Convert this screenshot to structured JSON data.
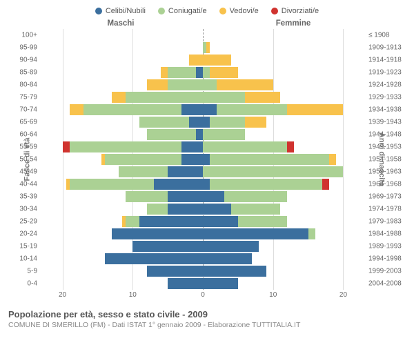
{
  "legend": {
    "items": [
      {
        "label": "Celibi/Nubili",
        "color": "#3b6f9e"
      },
      {
        "label": "Coniugati/e",
        "color": "#abd194"
      },
      {
        "label": "Vedovi/e",
        "color": "#f8c24c"
      },
      {
        "label": "Divorziati/e",
        "color": "#d0332f"
      }
    ]
  },
  "gender": {
    "male": "Maschi",
    "female": "Femmine"
  },
  "axes": {
    "left_title": "Fasce di età",
    "right_title": "Anni di nascita",
    "x_max": 23,
    "x_ticks": [
      20,
      10,
      0,
      10,
      20
    ]
  },
  "colors": {
    "single": "#3b6f9e",
    "married": "#abd194",
    "widowed": "#f8c24c",
    "divorced": "#d0332f",
    "grid": "#dddddd",
    "center": "#999999"
  },
  "rows": [
    {
      "age": "100+",
      "birth": "≤ 1908",
      "m": {
        "s": 0,
        "c": 0,
        "w": 0,
        "d": 0
      },
      "f": {
        "s": 0,
        "c": 0,
        "w": 0,
        "d": 0
      }
    },
    {
      "age": "95-99",
      "birth": "1909-1913",
      "m": {
        "s": 0,
        "c": 0,
        "w": 0,
        "d": 0
      },
      "f": {
        "s": 0,
        "c": 0.5,
        "w": 0.5,
        "d": 0
      }
    },
    {
      "age": "90-94",
      "birth": "1914-1918",
      "m": {
        "s": 0,
        "c": 0,
        "w": 2,
        "d": 0
      },
      "f": {
        "s": 0,
        "c": 0,
        "w": 4,
        "d": 0
      }
    },
    {
      "age": "85-89",
      "birth": "1919-1923",
      "m": {
        "s": 1,
        "c": 4,
        "w": 1,
        "d": 0
      },
      "f": {
        "s": 0,
        "c": 1,
        "w": 4,
        "d": 0
      }
    },
    {
      "age": "80-84",
      "birth": "1924-1928",
      "m": {
        "s": 0,
        "c": 5,
        "w": 3,
        "d": 0
      },
      "f": {
        "s": 0,
        "c": 2,
        "w": 8,
        "d": 0
      }
    },
    {
      "age": "75-79",
      "birth": "1929-1933",
      "m": {
        "s": 0,
        "c": 11,
        "w": 2,
        "d": 0
      },
      "f": {
        "s": 0,
        "c": 6,
        "w": 5,
        "d": 0
      }
    },
    {
      "age": "70-74",
      "birth": "1934-1938",
      "m": {
        "s": 3,
        "c": 14,
        "w": 2,
        "d": 0
      },
      "f": {
        "s": 2,
        "c": 10,
        "w": 8,
        "d": 0
      }
    },
    {
      "age": "65-69",
      "birth": "1939-1943",
      "m": {
        "s": 2,
        "c": 7,
        "w": 0,
        "d": 0
      },
      "f": {
        "s": 1,
        "c": 5,
        "w": 3,
        "d": 0
      }
    },
    {
      "age": "60-64",
      "birth": "1944-1948",
      "m": {
        "s": 1,
        "c": 7,
        "w": 0,
        "d": 0
      },
      "f": {
        "s": 0,
        "c": 6,
        "w": 0,
        "d": 0
      }
    },
    {
      "age": "55-59",
      "birth": "1949-1953",
      "m": {
        "s": 3,
        "c": 16,
        "w": 0,
        "d": 1
      },
      "f": {
        "s": 0,
        "c": 12,
        "w": 0,
        "d": 1
      }
    },
    {
      "age": "50-54",
      "birth": "1954-1958",
      "m": {
        "s": 3,
        "c": 11,
        "w": 0.5,
        "d": 0
      },
      "f": {
        "s": 1,
        "c": 17,
        "w": 1,
        "d": 0
      }
    },
    {
      "age": "45-49",
      "birth": "1959-1963",
      "m": {
        "s": 5,
        "c": 7,
        "w": 0,
        "d": 0
      },
      "f": {
        "s": 0,
        "c": 20,
        "w": 0,
        "d": 0
      }
    },
    {
      "age": "40-44",
      "birth": "1964-1968",
      "m": {
        "s": 7,
        "c": 12,
        "w": 0.5,
        "d": 0
      },
      "f": {
        "s": 1,
        "c": 16,
        "w": 0,
        "d": 1
      }
    },
    {
      "age": "35-39",
      "birth": "1969-1973",
      "m": {
        "s": 5,
        "c": 6,
        "w": 0,
        "d": 0
      },
      "f": {
        "s": 3,
        "c": 9,
        "w": 0,
        "d": 0
      }
    },
    {
      "age": "30-34",
      "birth": "1974-1978",
      "m": {
        "s": 5,
        "c": 3,
        "w": 0,
        "d": 0
      },
      "f": {
        "s": 4,
        "c": 7,
        "w": 0,
        "d": 0
      }
    },
    {
      "age": "25-29",
      "birth": "1979-1983",
      "m": {
        "s": 9,
        "c": 2,
        "w": 0.5,
        "d": 0
      },
      "f": {
        "s": 5,
        "c": 7,
        "w": 0,
        "d": 0
      }
    },
    {
      "age": "20-24",
      "birth": "1984-1988",
      "m": {
        "s": 13,
        "c": 0,
        "w": 0,
        "d": 0
      },
      "f": {
        "s": 15,
        "c": 1,
        "w": 0,
        "d": 0
      }
    },
    {
      "age": "15-19",
      "birth": "1989-1993",
      "m": {
        "s": 10,
        "c": 0,
        "w": 0,
        "d": 0
      },
      "f": {
        "s": 8,
        "c": 0,
        "w": 0,
        "d": 0
      }
    },
    {
      "age": "10-14",
      "birth": "1994-1998",
      "m": {
        "s": 14,
        "c": 0,
        "w": 0,
        "d": 0
      },
      "f": {
        "s": 7,
        "c": 0,
        "w": 0,
        "d": 0
      }
    },
    {
      "age": "5-9",
      "birth": "1999-2003",
      "m": {
        "s": 8,
        "c": 0,
        "w": 0,
        "d": 0
      },
      "f": {
        "s": 9,
        "c": 0,
        "w": 0,
        "d": 0
      }
    },
    {
      "age": "0-4",
      "birth": "2004-2008",
      "m": {
        "s": 5,
        "c": 0,
        "w": 0,
        "d": 0
      },
      "f": {
        "s": 5,
        "c": 0,
        "w": 0,
        "d": 0
      }
    }
  ],
  "footer": {
    "title": "Popolazione per età, sesso e stato civile - 2009",
    "subtitle": "COMUNE DI SMERILLO (FM) - Dati ISTAT 1° gennaio 2009 - Elaborazione TUTTITALIA.IT"
  }
}
